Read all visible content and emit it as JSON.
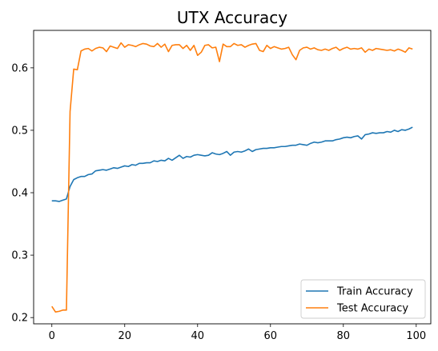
{
  "chart_data": {
    "type": "line",
    "title": "UTX Accuracy",
    "xlabel": "",
    "ylabel": "",
    "xlim": [
      -5,
      104
    ],
    "ylim": [
      0.19,
      0.66
    ],
    "xticks": [
      0,
      20,
      40,
      60,
      80,
      100
    ],
    "yticks": [
      0.2,
      0.3,
      0.4,
      0.5,
      0.6
    ],
    "ytick_labels": [
      "0.2",
      "0.3",
      "0.4",
      "0.5",
      "0.6"
    ],
    "grid": false,
    "legend_position": "lower-right",
    "x": [
      0,
      1,
      2,
      3,
      4,
      5,
      6,
      7,
      8,
      9,
      10,
      11,
      12,
      13,
      14,
      15,
      16,
      17,
      18,
      19,
      20,
      21,
      22,
      23,
      24,
      25,
      26,
      27,
      28,
      29,
      30,
      31,
      32,
      33,
      34,
      35,
      36,
      37,
      38,
      39,
      40,
      41,
      42,
      43,
      44,
      45,
      46,
      47,
      48,
      49,
      50,
      51,
      52,
      53,
      54,
      55,
      56,
      57,
      58,
      59,
      60,
      61,
      62,
      63,
      64,
      65,
      66,
      67,
      68,
      69,
      70,
      71,
      72,
      73,
      74,
      75,
      76,
      77,
      78,
      79,
      80,
      81,
      82,
      83,
      84,
      85,
      86,
      87,
      88,
      89,
      90,
      91,
      92,
      93,
      94,
      95,
      96,
      97,
      98,
      99
    ],
    "series": [
      {
        "name": "Train Accuracy",
        "color": "#1f77b4",
        "values": [
          0.387,
          0.387,
          0.386,
          0.388,
          0.39,
          0.41,
          0.421,
          0.424,
          0.426,
          0.426,
          0.429,
          0.43,
          0.435,
          0.436,
          0.437,
          0.436,
          0.438,
          0.44,
          0.439,
          0.441,
          0.443,
          0.442,
          0.445,
          0.444,
          0.447,
          0.447,
          0.448,
          0.448,
          0.451,
          0.45,
          0.452,
          0.451,
          0.455,
          0.452,
          0.456,
          0.46,
          0.455,
          0.458,
          0.457,
          0.46,
          0.461,
          0.46,
          0.459,
          0.46,
          0.464,
          0.462,
          0.461,
          0.463,
          0.466,
          0.46,
          0.465,
          0.466,
          0.465,
          0.467,
          0.47,
          0.466,
          0.469,
          0.47,
          0.471,
          0.471,
          0.472,
          0.472,
          0.473,
          0.474,
          0.474,
          0.475,
          0.476,
          0.476,
          0.478,
          0.477,
          0.476,
          0.479,
          0.481,
          0.48,
          0.481,
          0.483,
          0.483,
          0.483,
          0.485,
          0.486,
          0.488,
          0.489,
          0.488,
          0.49,
          0.491,
          0.486,
          0.493,
          0.494,
          0.496,
          0.495,
          0.496,
          0.496,
          0.498,
          0.497,
          0.5,
          0.498,
          0.501,
          0.5,
          0.502,
          0.505
        ]
      },
      {
        "name": "Test Accuracy",
        "color": "#ff7f0e",
        "values": [
          0.218,
          0.209,
          0.21,
          0.212,
          0.212,
          0.53,
          0.598,
          0.597,
          0.627,
          0.63,
          0.631,
          0.627,
          0.631,
          0.633,
          0.632,
          0.626,
          0.635,
          0.633,
          0.631,
          0.64,
          0.633,
          0.637,
          0.636,
          0.634,
          0.637,
          0.639,
          0.638,
          0.635,
          0.634,
          0.639,
          0.633,
          0.638,
          0.626,
          0.636,
          0.637,
          0.637,
          0.631,
          0.636,
          0.628,
          0.636,
          0.62,
          0.625,
          0.636,
          0.637,
          0.632,
          0.633,
          0.61,
          0.638,
          0.634,
          0.634,
          0.639,
          0.636,
          0.637,
          0.633,
          0.636,
          0.638,
          0.639,
          0.628,
          0.626,
          0.636,
          0.631,
          0.634,
          0.632,
          0.63,
          0.631,
          0.633,
          0.621,
          0.613,
          0.628,
          0.632,
          0.633,
          0.63,
          0.632,
          0.629,
          0.628,
          0.63,
          0.628,
          0.631,
          0.633,
          0.628,
          0.631,
          0.633,
          0.63,
          0.631,
          0.63,
          0.632,
          0.625,
          0.63,
          0.628,
          0.631,
          0.63,
          0.629,
          0.628,
          0.629,
          0.627,
          0.63,
          0.628,
          0.625,
          0.632,
          0.63
        ]
      }
    ]
  }
}
